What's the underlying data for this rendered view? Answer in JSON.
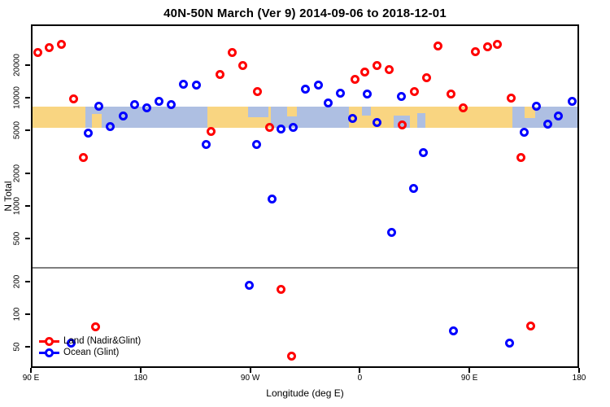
{
  "title": "40N-50N March (Ver 9)   2014-09-06 to 2018-12-01",
  "colors": {
    "land_series": "#ff0000",
    "ocean_series": "#0000ff",
    "map_land": "#f9d581",
    "map_ocean": "#aebfe2",
    "threshold_line": "#7e7e7e",
    "axis": "#000000"
  },
  "legend": {
    "items": [
      {
        "label": "Land (Nadir&Glint)",
        "color": "#ff0000"
      },
      {
        "label": "Ocean (Glint)",
        "color": "#0000ff"
      }
    ]
  },
  "chart_data": {
    "type": "scatter",
    "title": "40N-50N March (Ver 9)   2014-09-06 to 2018-12-01",
    "xlabel": "Longitude (deg E)",
    "ylabel": "N Total",
    "grid": false,
    "legend_position": "bottom-left-inside",
    "x_axis": {
      "description": "longitude wrapping eastward, 90E to 180 (450 deg span)",
      "range_deg": [
        90,
        540
      ],
      "ticks": [
        {
          "deg": 90,
          "label": "90 E"
        },
        {
          "deg": 180,
          "label": "180"
        },
        {
          "deg": 270,
          "label": "90 W"
        },
        {
          "deg": 360,
          "label": "0"
        },
        {
          "deg": 450,
          "label": "90 E"
        },
        {
          "deg": 540,
          "label": "180"
        }
      ]
    },
    "y_axis": {
      "scale": "log",
      "range": [
        33,
        47000
      ],
      "ticks": [
        50,
        100,
        200,
        500,
        1000,
        2000,
        5000,
        10000,
        20000
      ]
    },
    "threshold_n": 270,
    "map_band": {
      "top_n": 8200,
      "bottom_n": 5300,
      "ocean_segments_deg": [
        [
          135,
          235
        ],
        [
          287,
          351
        ],
        [
          485,
          540
        ]
      ],
      "land_patches": [
        {
          "deg": [
            140,
            148
          ],
          "frac": [
            0.35,
            1
          ]
        },
        {
          "deg": [
            300,
            308
          ],
          "frac": [
            0,
            0.45
          ]
        },
        {
          "deg": [
            495,
            504
          ],
          "frac": [
            0,
            0.55
          ]
        }
      ],
      "ocean_patches": [
        {
          "deg": [
            268,
            285
          ],
          "frac": [
            0,
            0.5
          ]
        },
        {
          "deg": [
            362,
            369
          ],
          "frac": [
            0,
            0.4
          ]
        },
        {
          "deg": [
            388,
            401
          ],
          "frac": [
            0.4,
            1
          ]
        },
        {
          "deg": [
            407,
            414
          ],
          "frac": [
            0.3,
            1
          ]
        }
      ]
    },
    "series": [
      {
        "name": "Land (Nadir&Glint)",
        "color": "#ff0000",
        "points": [
          [
            96,
            26000
          ],
          [
            105,
            29000
          ],
          [
            115,
            31000
          ],
          [
            125,
            9800
          ],
          [
            133,
            2800
          ],
          [
            143,
            77
          ],
          [
            238,
            4900
          ],
          [
            245,
            16500
          ],
          [
            255,
            26000
          ],
          [
            264,
            19700
          ],
          [
            276,
            11300
          ],
          [
            286,
            5300
          ],
          [
            295,
            170
          ],
          [
            304,
            41
          ],
          [
            356,
            14700
          ],
          [
            364,
            17400
          ],
          [
            374,
            20000
          ],
          [
            384,
            18300
          ],
          [
            395,
            5600
          ],
          [
            405,
            11300
          ],
          [
            415,
            15400
          ],
          [
            424,
            30000
          ],
          [
            435,
            10900
          ],
          [
            445,
            8000
          ],
          [
            455,
            26400
          ],
          [
            465,
            29500
          ],
          [
            473,
            31300
          ],
          [
            484,
            10000
          ],
          [
            492,
            2800
          ],
          [
            500,
            78
          ]
        ]
      },
      {
        "name": "Ocean (Glint)",
        "color": "#0000ff",
        "points": [
          [
            123,
            54
          ],
          [
            137,
            4700
          ],
          [
            146,
            8400
          ],
          [
            155,
            5400
          ],
          [
            166,
            6800
          ],
          [
            175,
            8700
          ],
          [
            185,
            8000
          ],
          [
            195,
            9300
          ],
          [
            205,
            8600
          ],
          [
            215,
            13400
          ],
          [
            226,
            13200
          ],
          [
            234,
            3700
          ],
          [
            269,
            185
          ],
          [
            275,
            3700
          ],
          [
            288,
            1150
          ],
          [
            295,
            5100
          ],
          [
            305,
            5300
          ],
          [
            315,
            12000
          ],
          [
            326,
            13000
          ],
          [
            334,
            9000
          ],
          [
            344,
            11100
          ],
          [
            354,
            6400
          ],
          [
            366,
            10800
          ],
          [
            374,
            5900
          ],
          [
            386,
            570
          ],
          [
            394,
            10200
          ],
          [
            404,
            1450
          ],
          [
            412,
            3100
          ],
          [
            437,
            70
          ],
          [
            483,
            54
          ],
          [
            495,
            4800
          ],
          [
            505,
            8300
          ],
          [
            514,
            5700
          ],
          [
            523,
            6800
          ],
          [
            534,
            9200
          ]
        ]
      }
    ]
  }
}
